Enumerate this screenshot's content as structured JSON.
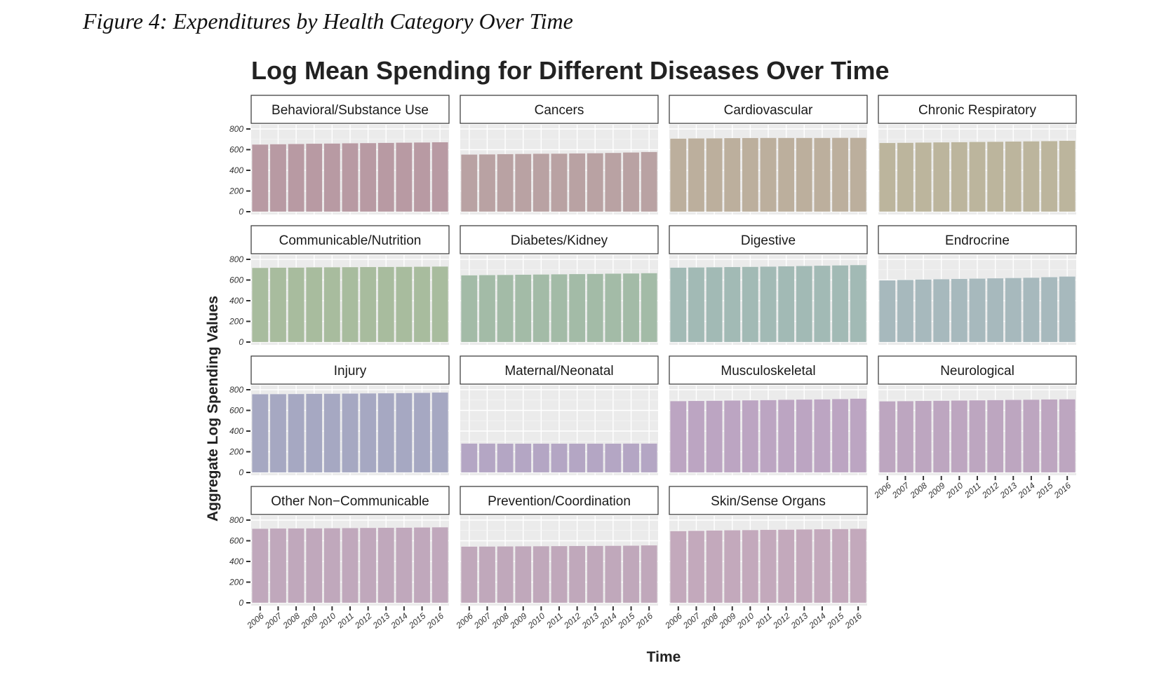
{
  "figure": {
    "caption": "Figure 4: Expenditures by Health Category Over Time"
  },
  "chart_data": {
    "type": "bar",
    "title": "Log Mean Spending for Different Diseases Over Time",
    "xlabel": "Time",
    "ylabel": "Aggregate Log Spending Values",
    "ylim": [
      0,
      800
    ],
    "yticks": [
      0,
      200,
      400,
      600,
      800
    ],
    "categories": [
      "2006",
      "2007",
      "2008",
      "2009",
      "2010",
      "2011",
      "2012",
      "2013",
      "2014",
      "2015",
      "2016"
    ],
    "grid": true,
    "layout": "facet_wrap 4 columns",
    "panels": [
      {
        "name": "Behavioral/Substance Use",
        "color": "#b89aa3",
        "values": [
          650,
          653,
          655,
          658,
          660,
          662,
          664,
          666,
          668,
          670,
          672
        ]
      },
      {
        "name": "Cancers",
        "color": "#b9a2a3",
        "values": [
          553,
          555,
          557,
          559,
          561,
          562,
          564,
          566,
          569,
          573,
          578
        ]
      },
      {
        "name": "Cardiovascular",
        "color": "#bcaf9d",
        "values": [
          707,
          709,
          710,
          712,
          713,
          714,
          714,
          714,
          714,
          715,
          715
        ]
      },
      {
        "name": "Chronic Respiratory",
        "color": "#bcb59d",
        "values": [
          665,
          667,
          669,
          671,
          673,
          675,
          677,
          679,
          681,
          683,
          686
        ]
      },
      {
        "name": "Communicable/Nutrition",
        "color": "#a8bc9e",
        "values": [
          718,
          720,
          721,
          723,
          724,
          725,
          726,
          727,
          728,
          729,
          731
        ]
      },
      {
        "name": "Diabetes/Kidney",
        "color": "#a3bba7",
        "values": [
          646,
          648,
          650,
          652,
          654,
          656,
          658,
          660,
          662,
          664,
          667
        ]
      },
      {
        "name": "Digestive",
        "color": "#a2bab5",
        "values": [
          720,
          722,
          724,
          726,
          728,
          730,
          733,
          736,
          739,
          742,
          745
        ]
      },
      {
        "name": "Endrocrine",
        "color": "#a7b9bd",
        "values": [
          597,
          601,
          605,
          608,
          611,
          614,
          617,
          620,
          623,
          628,
          634
        ]
      },
      {
        "name": "Injury",
        "color": "#a6a8c2",
        "values": [
          757,
          758,
          759,
          761,
          762,
          763,
          765,
          766,
          768,
          770,
          773
        ]
      },
      {
        "name": "Maternal/Neonatal",
        "color": "#b4a6c4",
        "values": [
          280,
          280,
          279,
          279,
          279,
          279,
          279,
          279,
          279,
          280,
          280
        ]
      },
      {
        "name": "Musculoskeletal",
        "color": "#bca5c2",
        "values": [
          690,
          692,
          694,
          696,
          698,
          700,
          703,
          705,
          707,
          710,
          714
        ]
      },
      {
        "name": "Neurological",
        "color": "#bda6c0",
        "values": [
          688,
          690,
          692,
          694,
          696,
          698,
          700,
          702,
          704,
          706,
          708
        ]
      },
      {
        "name": "Other Non−Communicable",
        "color": "#c0a8bc",
        "values": [
          717,
          719,
          720,
          721,
          722,
          723,
          725,
          726,
          727,
          729,
          731
        ]
      },
      {
        "name": "Prevention/Coordination",
        "color": "#c0a8bb",
        "values": [
          544,
          545,
          546,
          547,
          548,
          549,
          550,
          551,
          552,
          553,
          556
        ]
      },
      {
        "name": "Skin/Sense Organs",
        "color": "#c3a9bc",
        "values": [
          694,
          697,
          700,
          702,
          704,
          706,
          708,
          710,
          712,
          714,
          716
        ]
      }
    ]
  }
}
